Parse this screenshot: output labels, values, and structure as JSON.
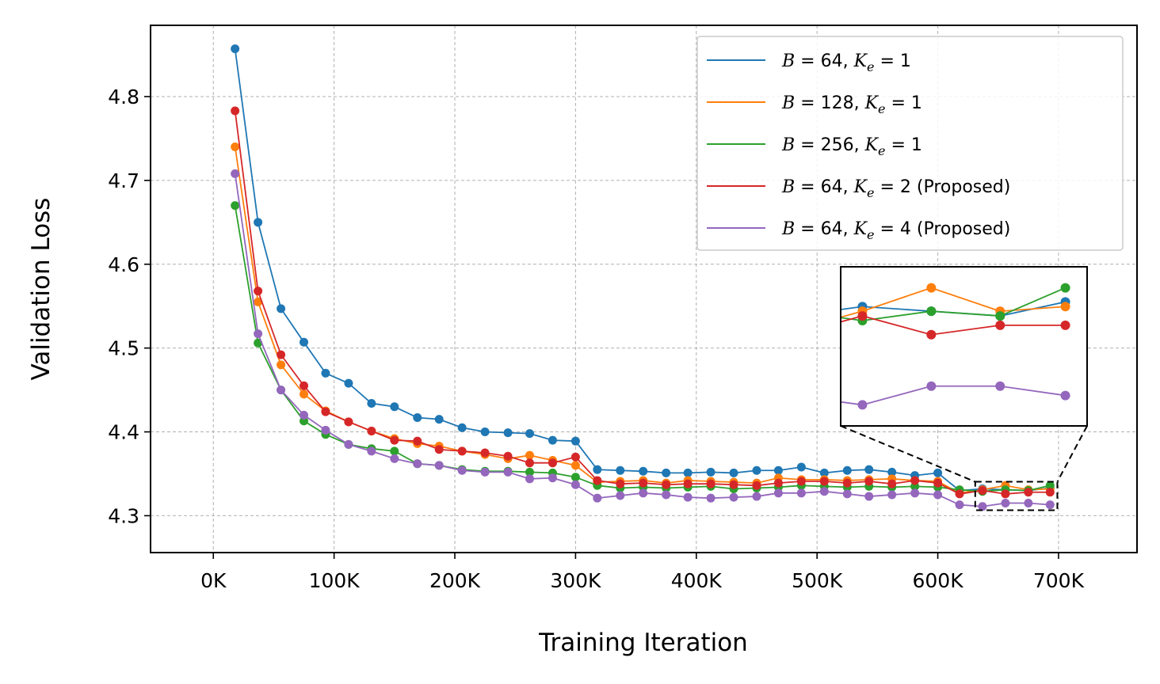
{
  "chart_data": {
    "type": "line",
    "title": "",
    "xlabel": "Training Iteration",
    "ylabel": "Validation Loss",
    "xlim": [
      -52000,
      765000
    ],
    "ylim": [
      4.256,
      4.885
    ],
    "x_ticks": [
      0,
      100000,
      200000,
      300000,
      400000,
      500000,
      600000,
      700000
    ],
    "x_tick_labels": [
      "0K",
      "100K",
      "200K",
      "300K",
      "400K",
      "500K",
      "600K",
      "700K"
    ],
    "y_ticks": [
      4.3,
      4.4,
      4.5,
      4.6,
      4.7,
      4.8
    ],
    "y_tick_labels": [
      "4.3",
      "4.4",
      "4.5",
      "4.6",
      "4.7",
      "4.8"
    ],
    "grid": true,
    "legend_position": "top-right",
    "x": [
      18000,
      37000,
      56000,
      75000,
      93000,
      112000,
      131000,
      150000,
      169000,
      187000,
      206000,
      225000,
      244000,
      262000,
      281000,
      300000,
      318000,
      337000,
      356000,
      375000,
      393000,
      412000,
      431000,
      450000,
      468000,
      487000,
      506000,
      525000,
      543000,
      562000,
      581000,
      600000,
      618000,
      637000,
      656000,
      675000,
      693000
    ],
    "series": [
      {
        "name": "B=64, Ke=1",
        "label_parts": {
          "b": "B",
          "b_eq": " = 64, ",
          "k": "K",
          "k_sub": "e",
          "k_eq": " = 1",
          "note": ""
        },
        "color": "#1f77b4",
        "values": [
          4.857,
          4.65,
          4.547,
          4.507,
          4.47,
          4.458,
          4.434,
          4.43,
          4.417,
          4.415,
          4.405,
          4.4,
          4.399,
          4.398,
          4.39,
          4.389,
          4.355,
          4.354,
          4.353,
          4.351,
          4.351,
          4.352,
          4.351,
          4.354,
          4.354,
          4.358,
          4.351,
          4.354,
          4.355,
          4.352,
          4.348,
          4.351,
          4.33,
          4.332,
          4.331,
          4.33,
          4.333
        ]
      },
      {
        "name": "B=128, Ke=1",
        "label_parts": {
          "b": "B",
          "b_eq": " = 128, ",
          "k": "K",
          "k_sub": "e",
          "k_eq": " = 1",
          "note": ""
        },
        "color": "#ff7f0e",
        "values": [
          4.74,
          4.555,
          4.48,
          4.445,
          4.425,
          4.412,
          4.401,
          4.392,
          4.386,
          4.383,
          4.377,
          4.373,
          4.368,
          4.372,
          4.366,
          4.36,
          4.34,
          4.341,
          4.342,
          4.339,
          4.342,
          4.341,
          4.34,
          4.339,
          4.345,
          4.343,
          4.343,
          4.342,
          4.343,
          4.344,
          4.342,
          4.341,
          4.327,
          4.331,
          4.336,
          4.331,
          4.332
        ]
      },
      {
        "name": "B=256, Ke=1",
        "label_parts": {
          "b": "B",
          "b_eq": " = 256, ",
          "k": "K",
          "k_sub": "e",
          "k_eq": " = 1",
          "note": ""
        },
        "color": "#2ca02c",
        "values": [
          4.67,
          4.506,
          4.45,
          4.413,
          4.397,
          4.385,
          4.38,
          4.377,
          4.362,
          4.36,
          4.355,
          4.353,
          4.353,
          4.352,
          4.351,
          4.346,
          4.336,
          4.333,
          4.334,
          4.333,
          4.334,
          4.335,
          4.332,
          4.333,
          4.334,
          4.336,
          4.335,
          4.334,
          4.335,
          4.334,
          4.335,
          4.334,
          4.331,
          4.329,
          4.331,
          4.33,
          4.336
        ]
      },
      {
        "name": "B=64, Ke=2 (Proposed)",
        "label_parts": {
          "b": "B",
          "b_eq": " = 64, ",
          "k": "K",
          "k_sub": "e",
          "k_eq": " = 2",
          "note": " (Proposed)"
        },
        "color": "#d62728",
        "values": [
          4.783,
          4.568,
          4.492,
          4.455,
          4.424,
          4.412,
          4.401,
          4.39,
          4.389,
          4.379,
          4.377,
          4.375,
          4.371,
          4.363,
          4.363,
          4.37,
          4.342,
          4.338,
          4.339,
          4.337,
          4.338,
          4.338,
          4.337,
          4.336,
          4.339,
          4.341,
          4.341,
          4.339,
          4.341,
          4.338,
          4.342,
          4.339,
          4.326,
          4.33,
          4.326,
          4.328,
          4.328
        ]
      },
      {
        "name": "B=64, Ke=4 (Proposed)",
        "label_parts": {
          "b": "B",
          "b_eq": " = 64, ",
          "k": "K",
          "k_sub": "e",
          "k_eq": " = 4",
          "note": " (Proposed)"
        },
        "color": "#9467bd",
        "values": [
          4.708,
          4.517,
          4.45,
          4.42,
          4.402,
          4.385,
          4.377,
          4.368,
          4.362,
          4.36,
          4.354,
          4.352,
          4.352,
          4.344,
          4.345,
          4.337,
          4.321,
          4.324,
          4.327,
          4.325,
          4.322,
          4.321,
          4.322,
          4.323,
          4.327,
          4.327,
          4.329,
          4.326,
          4.323,
          4.325,
          4.327,
          4.325,
          4.313,
          4.311,
          4.315,
          4.315,
          4.313
        ]
      }
    ],
    "inset": {
      "xlim": [
        631000,
        699000
      ],
      "ylim": [
        4.3065,
        4.3405
      ]
    }
  }
}
